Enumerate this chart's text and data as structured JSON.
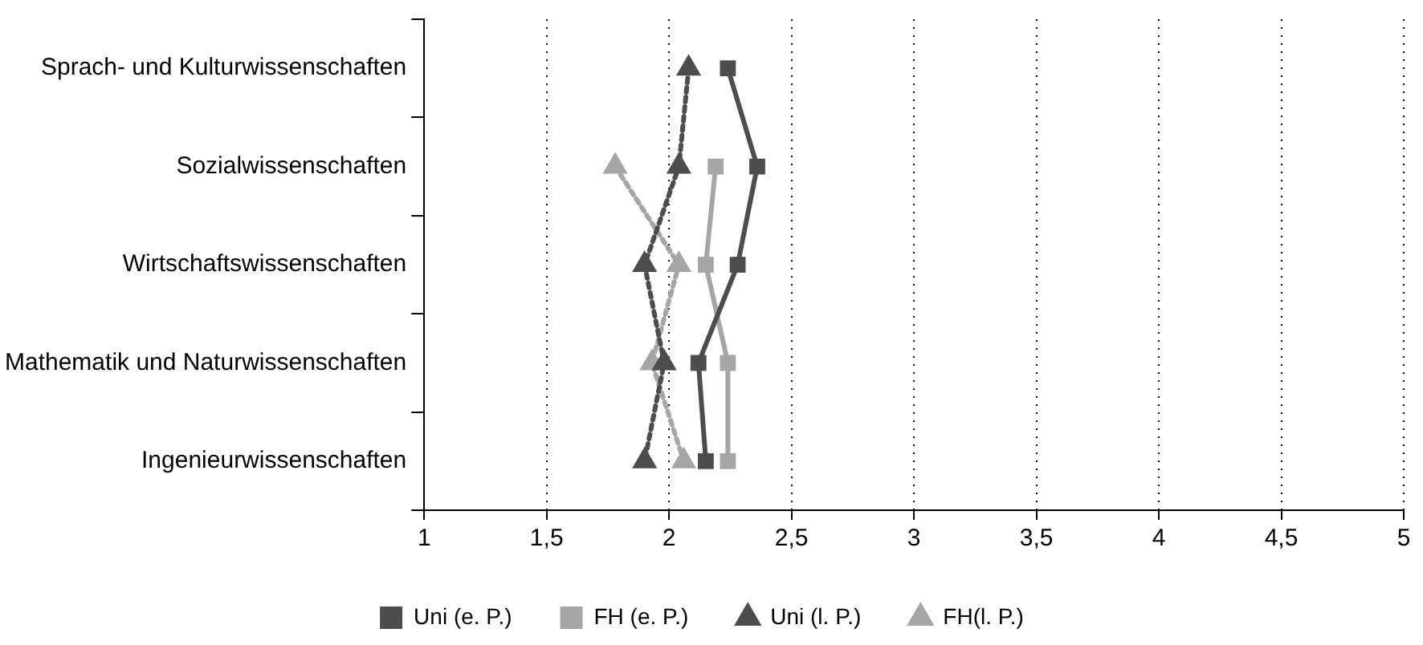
{
  "chart_data": {
    "type": "line",
    "orientation": "horizontal",
    "categories": [
      "Sprach- und Kulturwissenschaften",
      "Sozialwissenschaften",
      "Wirtschaftswissenschaften",
      "Mathematik und Naturwissenschaften",
      "Ingenieurwissenschaften"
    ],
    "series": [
      {
        "name": "Uni (e. P.)",
        "color": "#4d4d4d",
        "marker": "square",
        "line_style": "solid",
        "values": [
          2.24,
          2.36,
          2.28,
          2.12,
          2.15
        ]
      },
      {
        "name": "FH (e. P.)",
        "color": "#a6a6a6",
        "marker": "square",
        "line_style": "solid",
        "values": [
          null,
          2.19,
          2.15,
          2.24,
          2.24
        ]
      },
      {
        "name": "Uni (l. P.)",
        "color": "#4d4d4d",
        "marker": "triangle",
        "line_style": "dotted",
        "values": [
          2.08,
          2.04,
          1.9,
          1.98,
          1.9
        ]
      },
      {
        "name": "FH(l. P.)",
        "color": "#a6a6a6",
        "marker": "triangle",
        "line_style": "dotted",
        "values": [
          null,
          1.78,
          2.04,
          1.93,
          2.06
        ]
      }
    ],
    "xlim": [
      1,
      5
    ],
    "xticks": [
      1,
      {
        "value": 1.5,
        "label": "1,5"
      },
      2,
      {
        "value": 2.5,
        "label": "2,5"
      },
      3,
      {
        "value": 3.5,
        "label": "3,5"
      },
      4,
      {
        "value": 4.5,
        "label": "4,5"
      },
      5
    ],
    "grid": "x",
    "legend": "bottom"
  }
}
